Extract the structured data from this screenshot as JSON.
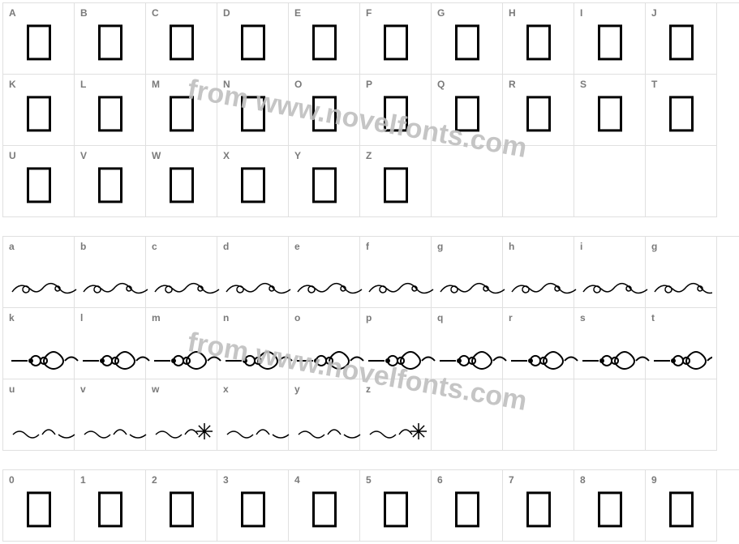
{
  "watermark_text": "from www.novelfonts.com",
  "watermark_color": "#bfbfbf",
  "watermark_fontsize": 34,
  "grid": {
    "cell_size": 88,
    "cols": 10,
    "border_color": "#e0e0e0",
    "label_color": "#7a7a7a",
    "label_fontsize": 12,
    "rows": [
      {
        "labels": [
          "A",
          "B",
          "C",
          "D",
          "E",
          "F",
          "G",
          "H",
          "I",
          "J"
        ],
        "type": "box"
      },
      {
        "labels": [
          "K",
          "L",
          "M",
          "N",
          "O",
          "P",
          "Q",
          "R",
          "S",
          "T"
        ],
        "type": "box"
      },
      {
        "labels": [
          "U",
          "V",
          "W",
          "X",
          "Y",
          "Z",
          "",
          "",
          "",
          ""
        ],
        "type": "box",
        "glyph_count": 6
      },
      {
        "labels": [
          "a",
          "b",
          "c",
          "d",
          "e",
          "f",
          "g",
          "h",
          "i",
          "g"
        ],
        "type": "ornament1"
      },
      {
        "labels": [
          "k",
          "l",
          "m",
          "n",
          "o",
          "p",
          "q",
          "r",
          "s",
          "t"
        ],
        "type": "ornament2"
      },
      {
        "labels": [
          "u",
          "v",
          "w",
          "x",
          "y",
          "z",
          "",
          "",
          "",
          ""
        ],
        "type": "ornament3",
        "glyph_count": 6
      },
      {
        "labels": [
          "0",
          "1",
          "2",
          "3",
          "4",
          "5",
          "6",
          "7",
          "8",
          "9"
        ],
        "type": "box"
      }
    ],
    "glyph_box": {
      "width": 30,
      "height": 44,
      "border_width": 3,
      "border_color": "#000000"
    }
  },
  "ornaments": {
    "stroke": "#000000",
    "fill": "#000000",
    "row1_svg": "decorative-scrollwork-continuous-1",
    "row2_svg": "decorative-scrollwork-continuous-2",
    "row3_svg": "decorative-scrollwork-continuous-3"
  }
}
